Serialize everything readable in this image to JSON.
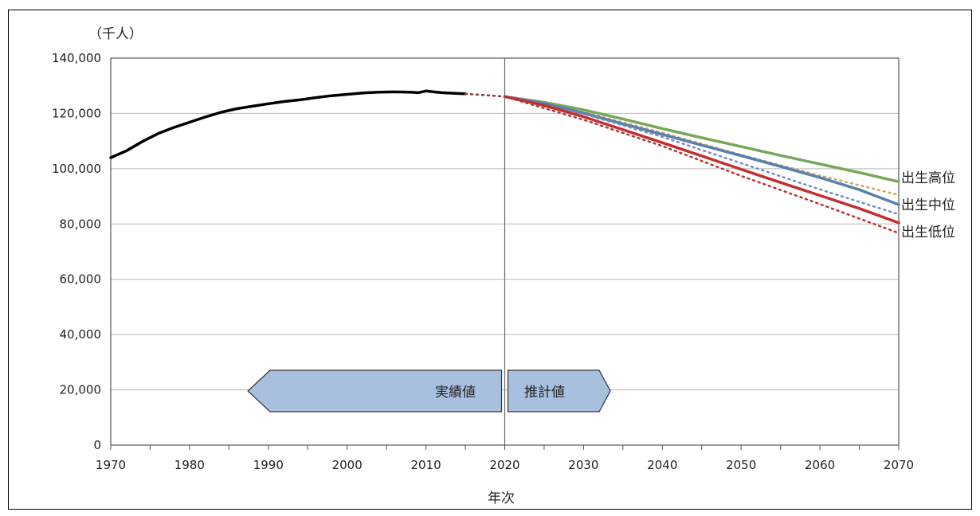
{
  "chart_data": {
    "type": "line",
    "ylabel": "（千人）",
    "xlabel": "年次",
    "xlim": [
      1970,
      2070
    ],
    "ylim": [
      0,
      140000
    ],
    "x_ticks": [
      "1970",
      "1980",
      "1990",
      "2000",
      "2010",
      "2020",
      "2030",
      "2040",
      "2050",
      "2060",
      "2070"
    ],
    "y_ticks": [
      "0",
      "20,000",
      "40,000",
      "60,000",
      "80,000",
      "100,000",
      "120,000",
      "140,000"
    ],
    "grid": "horizontal",
    "divider_year": 2020,
    "arrows": {
      "left": "実績値",
      "right": "推計値"
    },
    "series": [
      {
        "color": "#000000",
        "style": "solid",
        "x": [
          1970,
          1972,
          1974,
          1976,
          1978,
          1980,
          1982,
          1984,
          1986,
          1988,
          1990,
          1992,
          1994,
          1996,
          1998,
          2000,
          2002,
          2004,
          2006,
          2008,
          2009,
          2010,
          2011,
          2012,
          2014,
          2015
        ],
        "y": [
          104000,
          106500,
          109800,
          112700,
          114900,
          116800,
          118700,
          120400,
          121700,
          122600,
          123500,
          124300,
          124900,
          125700,
          126400,
          126900,
          127400,
          127700,
          127800,
          127700,
          127500,
          128100,
          127800,
          127500,
          127200,
          127100
        ]
      },
      {
        "color": "#8b3a3a",
        "style": "dotted",
        "x": [
          2015,
          2017,
          2019,
          2020
        ],
        "y": [
          127100,
          126700,
          126300,
          126100
        ]
      },
      {
        "name": "出生高位",
        "color": "#77a85a",
        "style": "solid",
        "x": [
          2020,
          2025,
          2030,
          2035,
          2040,
          2045,
          2050,
          2055,
          2060,
          2065,
          2070
        ],
        "y": [
          126100,
          124000,
          121300,
          118000,
          114500,
          111200,
          108000,
          104800,
          101700,
          98600,
          95300
        ]
      },
      {
        "color": "#c9a860",
        "style": "dotted",
        "x": [
          2020,
          2030,
          2040,
          2050,
          2060,
          2070
        ],
        "y": [
          126100,
          120500,
          113000,
          105000,
          97500,
          90500
        ]
      },
      {
        "name": "出生中位",
        "color": "#5b7fad",
        "style": "solid",
        "x": [
          2020,
          2025,
          2030,
          2035,
          2040,
          2045,
          2050,
          2055,
          2060,
          2065,
          2070
        ],
        "y": [
          126100,
          123600,
          120100,
          116200,
          112400,
          108500,
          104700,
          100800,
          96800,
          92400,
          87000
        ]
      },
      {
        "color": "#6f8fbd",
        "style": "dotted",
        "x": [
          2020,
          2030,
          2040,
          2050,
          2060,
          2070
        ],
        "y": [
          126100,
          119800,
          111500,
          102000,
          92500,
          83500
        ]
      },
      {
        "name": "出生低位",
        "color": "#c0302f",
        "style": "solid",
        "x": [
          2020,
          2025,
          2030,
          2035,
          2040,
          2045,
          2050,
          2055,
          2060,
          2065,
          2070
        ],
        "y": [
          126100,
          122900,
          118800,
          114100,
          109400,
          104600,
          99800,
          95000,
          90300,
          85600,
          80400
        ]
      },
      {
        "color": "#c0302f",
        "style": "dotted",
        "x": [
          2020,
          2030,
          2040,
          2050,
          2060,
          2070
        ],
        "y": [
          126100,
          117700,
          108200,
          97400,
          87200,
          76700
        ]
      }
    ]
  }
}
